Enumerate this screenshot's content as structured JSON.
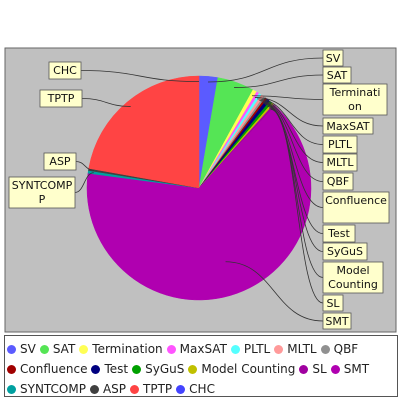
{
  "chart_data": {
    "type": "pie",
    "title": "",
    "series": [
      {
        "label": "SV",
        "value": 2.7,
        "color": "#5B5BFF"
      },
      {
        "label": "SAT",
        "value": 5.3,
        "color": "#55E555"
      },
      {
        "label": "Termination",
        "value": 0.6,
        "color": "#FFFF55"
      },
      {
        "label": "MaxSAT",
        "value": 0.4,
        "color": "#FF55FF"
      },
      {
        "label": "PLTL",
        "value": 0.4,
        "color": "#55FFFF"
      },
      {
        "label": "MLTL",
        "value": 0.4,
        "color": "#FF9A9A"
      },
      {
        "label": "QBF",
        "value": 0.3,
        "color": "#909090"
      },
      {
        "label": "Confluence",
        "value": 0.3,
        "color": "#A00000"
      },
      {
        "label": "Test",
        "value": 0.5,
        "color": "#000080"
      },
      {
        "label": "SyGuS",
        "value": 0.4,
        "color": "#00A000"
      },
      {
        "label": "Model Counting",
        "value": 0.3,
        "color": "#C0C000"
      },
      {
        "label": "SL",
        "value": 0.3,
        "color": "#A000A0"
      },
      {
        "label": "SMT",
        "value": 65.2,
        "color": "#B000B0"
      },
      {
        "label": "SYNTCOMP",
        "value": 0.4,
        "color": "#00A0A0"
      },
      {
        "label": "ASP",
        "value": 0.3,
        "color": "#404040"
      },
      {
        "label": "TPTP",
        "value": 22.2,
        "color": "#FF4444"
      },
      {
        "label": "CHC",
        "value": 0.0,
        "color": "#4444FF"
      }
    ],
    "callouts": [
      {
        "text": "CHC",
        "series": "CHC"
      },
      {
        "text": "TPTP",
        "series": "TPTP"
      },
      {
        "text": "ASP",
        "series": "ASP"
      },
      {
        "text": "SYNTCOMP\nP",
        "series": "SYNTCOMP"
      },
      {
        "text": "SV",
        "series": "SV"
      },
      {
        "text": "SAT",
        "series": "SAT"
      },
      {
        "text": "Terminati\non",
        "series": "Termination"
      },
      {
        "text": "MaxSAT",
        "series": "MaxSAT"
      },
      {
        "text": "PLTL",
        "series": "PLTL"
      },
      {
        "text": "MLTL",
        "series": "MLTL"
      },
      {
        "text": "QBF",
        "series": "QBF"
      },
      {
        "text": "Confluence",
        "series": "Confluence"
      },
      {
        "text": "Test",
        "series": "Test"
      },
      {
        "text": "SyGuS",
        "series": "SyGuS"
      },
      {
        "text": "Model\nCounting",
        "series": "Model Counting"
      },
      {
        "text": "SL",
        "series": "SL"
      },
      {
        "text": "SMT",
        "series": "SMT"
      }
    ],
    "legend": {
      "position": "bottom",
      "rows": [
        [
          "SV",
          "SAT",
          "Termination",
          "MaxSAT",
          "PLTL",
          "MLTL",
          "QBF"
        ],
        [
          "Confluence",
          "Test",
          "SyGuS",
          "Model Counting",
          "SL",
          "SMT"
        ],
        [
          "SYNTCOMP",
          "ASP",
          "TPTP",
          "CHC"
        ]
      ]
    },
    "plot_background": "#C0C0C0",
    "callout_background": "#FFFFCC"
  }
}
